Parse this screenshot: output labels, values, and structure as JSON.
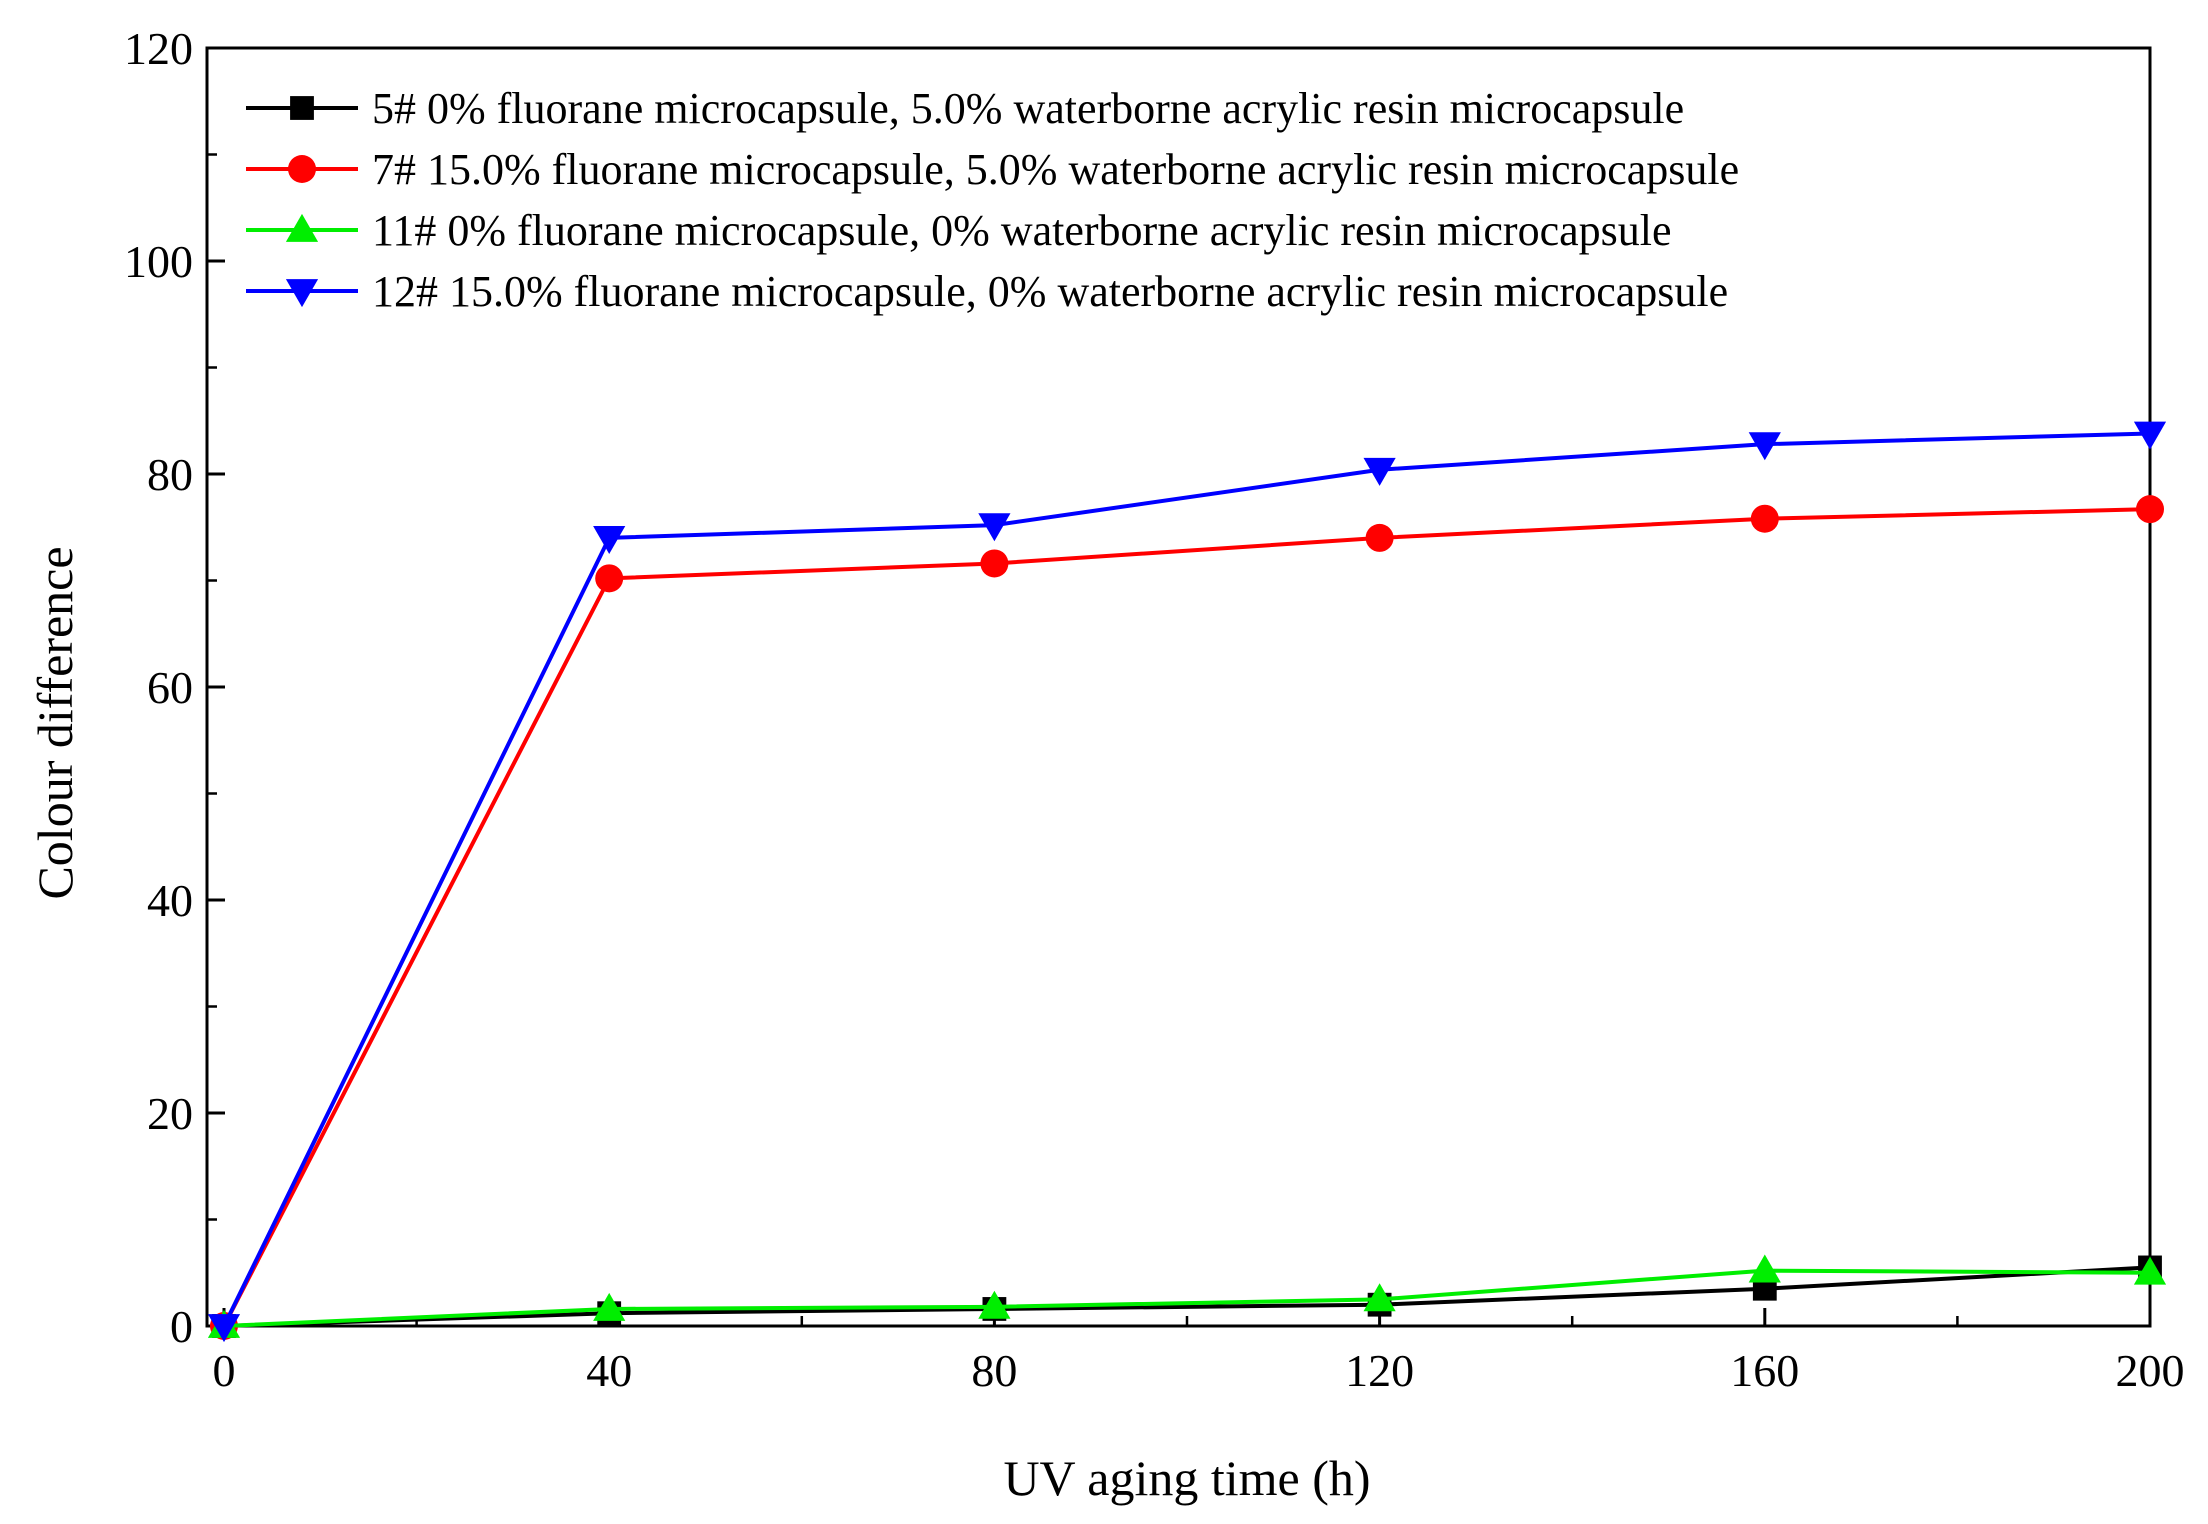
{
  "chart_data": {
    "type": "line",
    "title": "",
    "xlabel": "UV aging time (h)",
    "ylabel": "Colour difference",
    "x": [
      0,
      40,
      80,
      120,
      160,
      200
    ],
    "xlim": [
      0,
      200
    ],
    "ylim": [
      0,
      120
    ],
    "xticks": [
      0,
      40,
      80,
      120,
      160,
      200
    ],
    "yticks": [
      0,
      20,
      40,
      60,
      80,
      100,
      120
    ],
    "grid": false,
    "legend_position": "top-left",
    "series": [
      {
        "name": "5# 0% fluorane microcapsule, 5.0% waterborne acrylic resin microcapsule",
        "color": "#000000",
        "marker": "square",
        "values": [
          0,
          1.2,
          1.6,
          2.0,
          3.5,
          5.5
        ]
      },
      {
        "name": "7# 15.0% fluorane microcapsule, 5.0% waterborne acrylic resin microcapsule",
        "color": "#ff0000",
        "marker": "circle",
        "values": [
          0,
          70.2,
          71.6,
          74.0,
          75.8,
          76.7
        ]
      },
      {
        "name": "11# 0% fluorane microcapsule, 0% waterborne acrylic resin microcapsule",
        "color": "#00ee00",
        "marker": "triangle-up",
        "values": [
          0,
          1.6,
          1.8,
          2.5,
          5.2,
          5.0
        ]
      },
      {
        "name": "12# 15.0% fluorane microcapsule, 0% waterborne acrylic resin microcapsule",
        "color": "#0000ff",
        "marker": "triangle-down",
        "values": [
          0,
          74.0,
          75.2,
          80.4,
          82.8,
          83.8
        ]
      }
    ]
  }
}
